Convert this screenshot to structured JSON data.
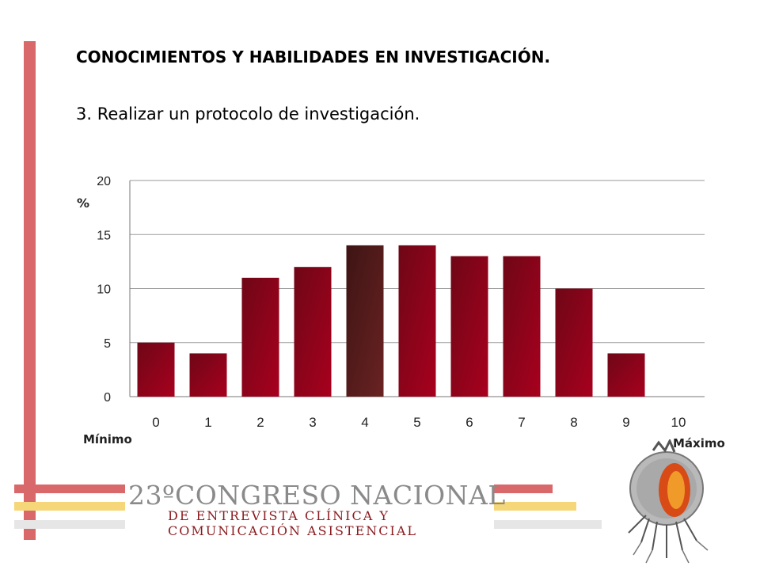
{
  "slide": {
    "title": "CONOCIMIENTOS Y HABILIDADES EN INVESTIGACIÓN.",
    "subtitle": "3. Realizar un protocolo de investigación.",
    "min_label": "Mínimo",
    "max_label": "Máximo"
  },
  "banner": {
    "line1": "23ºCONGRESO NACIONAL",
    "line2": "DE ENTREVISTA CLÍNICA Y",
    "line3": "COMUNICACIÓN ASISTENCIAL"
  },
  "logo": {
    "icon": "congress-logo-icon"
  },
  "colors": {
    "accent_red": "#d9686a",
    "accent_yellow": "#f5d77a",
    "accent_gray": "#e6e6e6",
    "bar": "#8c0c1c",
    "bar_highlight": "#5a1a1c"
  },
  "chart_data": {
    "type": "bar",
    "title": "",
    "xlabel": "",
    "ylabel": "%",
    "categories": [
      "0",
      "1",
      "2",
      "3",
      "4",
      "5",
      "6",
      "7",
      "8",
      "9",
      "10"
    ],
    "values": [
      5,
      4,
      11,
      12,
      14,
      14,
      13,
      13,
      10,
      4,
      0
    ],
    "highlight_index": 4,
    "ylim": [
      0,
      20
    ],
    "yticks": [
      0,
      5,
      10,
      15,
      20
    ],
    "grid": true,
    "legend": "none"
  }
}
